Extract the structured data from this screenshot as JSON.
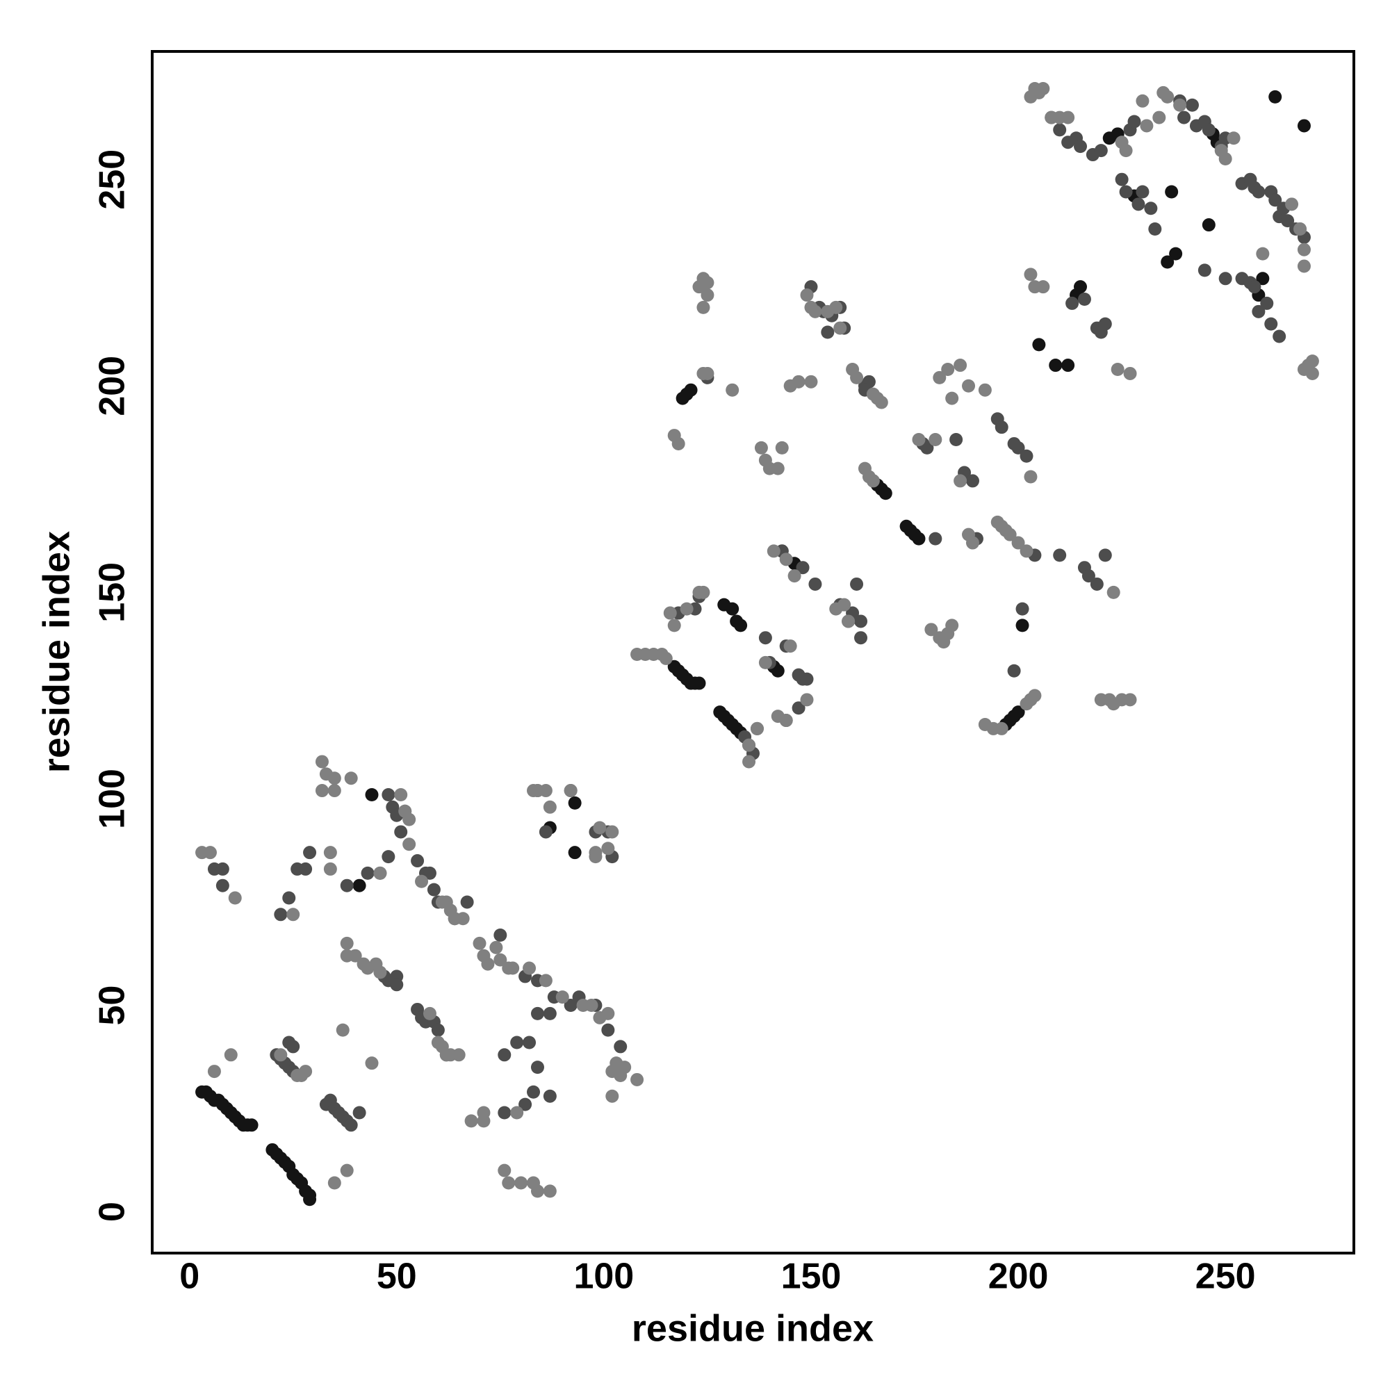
{
  "chart_data": {
    "type": "scatter",
    "x_label": "residue index",
    "y_label": "residue index",
    "xlim": [
      -9,
      281
    ],
    "ylim": [
      -10,
      281
    ],
    "xticks": [
      0,
      50,
      100,
      150,
      200,
      250
    ],
    "yticks": [
      0,
      50,
      100,
      150,
      200,
      250
    ],
    "grid": false,
    "series": [
      {
        "color": "#141414",
        "x": [
          3,
          4,
          5,
          6,
          7,
          8,
          9,
          10,
          11,
          12,
          13,
          14,
          15,
          20,
          21,
          22,
          23,
          24,
          25,
          26,
          27,
          28,
          29,
          29,
          117,
          118,
          119,
          120,
          121,
          122,
          123,
          128,
          129,
          130,
          131,
          132,
          133,
          173,
          174,
          175,
          176,
          197,
          198,
          199,
          200,
          165,
          166,
          167,
          168,
          119,
          120,
          121,
          141,
          142,
          129,
          131,
          132,
          133,
          143,
          146,
          87,
          93,
          93,
          44,
          41,
          262,
          269,
          246,
          237,
          238,
          236,
          228,
          258,
          259,
          222,
          224,
          247,
          248,
          201,
          214,
          215,
          205,
          209,
          212
        ],
        "y": [
          29,
          29,
          28,
          27,
          27,
          26,
          25,
          24,
          23,
          22,
          21,
          21,
          21,
          15,
          14,
          13,
          12,
          11,
          9,
          8,
          7,
          5,
          4,
          3,
          132,
          131,
          130,
          129,
          128,
          128,
          128,
          121,
          120,
          119,
          118,
          117,
          116,
          166,
          165,
          164,
          163,
          118,
          119,
          120,
          121,
          177,
          176,
          175,
          174,
          197,
          198,
          199,
          132,
          131,
          147,
          146,
          143,
          142,
          160,
          157,
          93,
          99,
          87,
          101,
          79,
          270,
          263,
          239,
          247,
          232,
          230,
          246,
          222,
          226,
          260,
          261,
          261,
          259,
          142,
          222,
          224,
          210,
          205,
          205
        ]
      },
      {
        "color": "#4d4d4d",
        "x": [
          21,
          22,
          23,
          24,
          25,
          24,
          25,
          33,
          34,
          35,
          36,
          37,
          38,
          39,
          41,
          6,
          8,
          8,
          22,
          24,
          26,
          28,
          29,
          38,
          43,
          46,
          48,
          48,
          49,
          50,
          51,
          52,
          47,
          48,
          50,
          50,
          55,
          56,
          57,
          59,
          60,
          62,
          55,
          57,
          58,
          59,
          60,
          64,
          67,
          75,
          81,
          84,
          88,
          92,
          94,
          98,
          101,
          104,
          76,
          79,
          82,
          84,
          87,
          83,
          81,
          76,
          84,
          87,
          86,
          92,
          98,
          101,
          102,
          134,
          135,
          136,
          137,
          139,
          144,
          147,
          148,
          149,
          140,
          144,
          147,
          148,
          151,
          143,
          118,
          122,
          123,
          125,
          150,
          152,
          153,
          155,
          157,
          158,
          154,
          157,
          159,
          160,
          161,
          162,
          162,
          163,
          164,
          163,
          177,
          178,
          180,
          185,
          187,
          189,
          190,
          199,
          200,
          202,
          204,
          210,
          216,
          217,
          219,
          221,
          195,
          196,
          199,
          201,
          203,
          213,
          216,
          219,
          220,
          221,
          208,
          210,
          212,
          214,
          215,
          218,
          220,
          225,
          226,
          227,
          228,
          230,
          229,
          232,
          233,
          239,
          240,
          243,
          245,
          246,
          249,
          250,
          242,
          245,
          250,
          254,
          256,
          257,
          258,
          260,
          261,
          263,
          254,
          256,
          257,
          258,
          261,
          262,
          263,
          264,
          265,
          267,
          268,
          269
        ],
        "y": [
          38,
          37,
          36,
          35,
          34,
          41,
          40,
          26,
          27,
          25,
          24,
          23,
          22,
          21,
          24,
          83,
          83,
          79,
          72,
          76,
          83,
          83,
          87,
          79,
          82,
          82,
          86,
          101,
          98,
          96,
          92,
          97,
          57,
          56,
          57,
          55,
          49,
          47,
          46,
          46,
          44,
          38,
          85,
          82,
          82,
          78,
          75,
          71,
          75,
          67,
          57,
          56,
          52,
          50,
          52,
          50,
          44,
          40,
          38,
          41,
          41,
          48,
          48,
          29,
          26,
          24,
          35,
          28,
          92,
          102,
          92,
          92,
          86,
          115,
          113,
          111,
          117,
          139,
          137,
          130,
          129,
          129,
          133,
          119,
          122,
          156,
          152,
          160,
          145,
          146,
          149,
          202,
          224,
          219,
          218,
          217,
          219,
          214,
          213,
          147,
          143,
          145,
          152,
          143,
          139,
          200,
          201,
          199,
          186,
          185,
          163,
          187,
          179,
          177,
          163,
          186,
          185,
          183,
          159,
          159,
          156,
          154,
          152,
          159,
          192,
          190,
          131,
          146,
          124,
          220,
          221,
          214,
          213,
          215,
          265,
          262,
          259,
          260,
          258,
          256,
          257,
          250,
          247,
          262,
          264,
          247,
          244,
          243,
          238,
          269,
          265,
          263,
          264,
          262,
          258,
          260,
          268,
          228,
          226,
          226,
          225,
          224,
          218,
          220,
          215,
          212,
          249,
          250,
          248,
          247,
          247,
          245,
          241,
          243,
          240,
          238,
          238,
          236
        ]
      },
      {
        "color": "#808080",
        "x": [
          26,
          27,
          28,
          35,
          37,
          38,
          44,
          6,
          10,
          3,
          5,
          11,
          22,
          25,
          32,
          33,
          35,
          34,
          34,
          32,
          35,
          39,
          46,
          51,
          52,
          53,
          53,
          38,
          38,
          40,
          42,
          43,
          45,
          46,
          58,
          60,
          61,
          62,
          63,
          65,
          56,
          61,
          62,
          63,
          64,
          66,
          70,
          71,
          72,
          74,
          75,
          77,
          78,
          82,
          86,
          90,
          95,
          97,
          99,
          101,
          102,
          102,
          103,
          104,
          105,
          108,
          83,
          84,
          79,
          71,
          68,
          71,
          76,
          77,
          80,
          83,
          84,
          87,
          84,
          86,
          87,
          92,
          98,
          98,
          99,
          101,
          102,
          108,
          110,
          112,
          114,
          115,
          116,
          117,
          120,
          123,
          124,
          135,
          135,
          137,
          139,
          145,
          142,
          144,
          149,
          138,
          139,
          140,
          142,
          143,
          145,
          147,
          150,
          117,
          118,
          124,
          125,
          131,
          141,
          144,
          146,
          123,
          124,
          125,
          125,
          124,
          149,
          150,
          151,
          156,
          158,
          159,
          154,
          156,
          157,
          160,
          161,
          165,
          166,
          167,
          163,
          164,
          165,
          179,
          181,
          182,
          183,
          184,
          176,
          180,
          181,
          183,
          186,
          188,
          192,
          184,
          186,
          188,
          189,
          195,
          196,
          197,
          198,
          200,
          202,
          203,
          192,
          194,
          196,
          202,
          203,
          204,
          220,
          222,
          223,
          225,
          227,
          203,
          204,
          206,
          223,
          224,
          227,
          203,
          204,
          205,
          206,
          208,
          210,
          212,
          225,
          226,
          230,
          231,
          234,
          235,
          236,
          239,
          249,
          250,
          252,
          259,
          269,
          269,
          270,
          271,
          271,
          269,
          266,
          268
        ],
        "y": [
          33,
          33,
          34,
          7,
          44,
          10,
          36,
          34,
          38,
          87,
          87,
          76,
          38,
          72,
          109,
          106,
          105,
          87,
          83,
          102,
          102,
          105,
          82,
          101,
          97,
          95,
          89,
          65,
          62,
          62,
          60,
          59,
          60,
          58,
          48,
          41,
          40,
          38,
          38,
          38,
          80,
          75,
          75,
          73,
          71,
          71,
          65,
          62,
          60,
          64,
          61,
          59,
          59,
          59,
          56,
          52,
          50,
          50,
          47,
          48,
          34,
          28,
          36,
          33,
          35,
          32,
          102,
          102,
          24,
          22,
          22,
          24,
          10,
          7,
          7,
          7,
          5,
          5,
          102,
          102,
          98,
          102,
          86,
          87,
          93,
          88,
          92,
          135,
          135,
          135,
          135,
          134,
          145,
          142,
          146,
          150,
          150,
          113,
          109,
          117,
          133,
          137,
          120,
          119,
          124,
          185,
          182,
          180,
          180,
          185,
          200,
          201,
          201,
          188,
          186,
          203,
          203,
          199,
          160,
          158,
          154,
          224,
          226,
          225,
          222,
          219,
          222,
          219,
          218,
          146,
          147,
          143,
          218,
          219,
          214,
          204,
          202,
          198,
          197,
          196,
          180,
          178,
          177,
          141,
          139,
          138,
          140,
          142,
          187,
          187,
          202,
          204,
          205,
          200,
          199,
          197,
          177,
          164,
          162,
          167,
          166,
          165,
          164,
          162,
          160,
          178,
          118,
          117,
          117,
          123,
          124,
          125,
          124,
          124,
          123,
          124,
          124,
          227,
          224,
          224,
          150,
          204,
          203,
          270,
          272,
          271,
          272,
          265,
          265,
          265,
          259,
          257,
          269,
          263,
          265,
          271,
          270,
          268,
          257,
          255,
          260,
          232,
          204,
          229,
          205,
          206,
          203,
          233,
          244,
          238
        ]
      }
    ]
  }
}
